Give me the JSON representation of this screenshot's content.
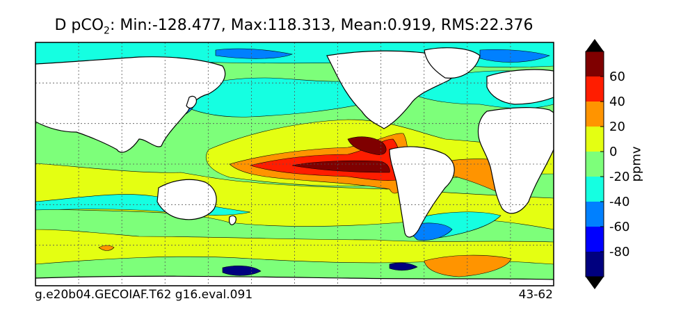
{
  "header": {
    "variable": "D pCO",
    "subscript": "2",
    "stats": ": Min:-128.477, Max:118.313, Mean:0.919, RMS:22.376"
  },
  "footer": {
    "case_name": "g.e20b04.GECOIAF.T62 g16.eval.091",
    "years": "43-62"
  },
  "colors": {
    "land": "#ffffff",
    "grid": "#555555",
    "levels": [
      "#00007f",
      "#0000ff",
      "#0080ff",
      "#15ffe1",
      "#7dff7a",
      "#e4ff12",
      "#ff9400",
      "#ff1d00",
      "#7f0000"
    ]
  },
  "chart_data": {
    "type": "heatmap",
    "units": "ppmv",
    "colorbar": {
      "levels": [
        -100,
        -80,
        -60,
        -40,
        -20,
        0,
        20,
        40,
        60,
        80
      ],
      "tick_labels": [
        "-80",
        "-60",
        "-40",
        "-20",
        "0",
        "20",
        "40",
        "60"
      ],
      "extend": "both"
    },
    "grid": true,
    "stats": {
      "min": -128.477,
      "max": 118.313,
      "mean": 0.919,
      "rms": 22.376
    }
  }
}
